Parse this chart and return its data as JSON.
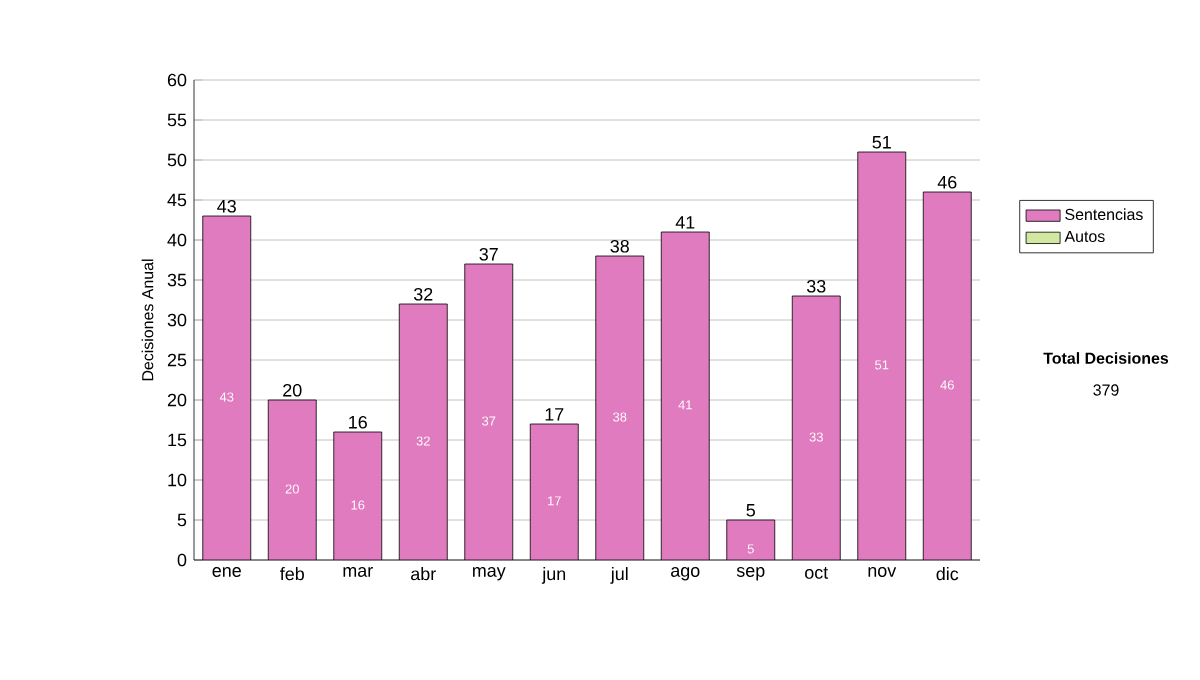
{
  "chart_data": {
    "type": "bar",
    "stacked": true,
    "ylabel": "Decisiones Anual",
    "categories": [
      "ene",
      "feb",
      "mar",
      "abr",
      "may",
      "jun",
      "jul",
      "ago",
      "sep",
      "oct",
      "nov",
      "dic"
    ],
    "series": [
      {
        "name": "Sentencias",
        "color": "#e07bc0",
        "values": [
          43,
          20,
          16,
          32,
          37,
          17,
          38,
          41,
          5,
          33,
          51,
          46
        ],
        "value_labels": [
          "43",
          "20",
          "16",
          "32",
          "37",
          "17",
          "38",
          "41",
          "5",
          "33",
          "51",
          "46"
        ]
      },
      {
        "name": "Autos",
        "color": "#d2e8a0",
        "values": [
          null,
          null,
          null,
          null,
          null,
          null,
          null,
          null,
          null,
          null,
          null,
          null
        ]
      }
    ],
    "totals": [
      "43",
      "20",
      "16",
      "32",
      "37",
      "17",
      "38",
      "41",
      "5",
      "33",
      "51",
      "46"
    ],
    "ylim": [
      0,
      60
    ],
    "yticks": [
      0,
      5,
      10,
      15,
      20,
      25,
      30,
      35,
      40,
      45,
      50,
      55,
      60
    ],
    "grid": "y",
    "legend": "right",
    "annotations": [
      "Total Decisiones",
      "379"
    ]
  }
}
